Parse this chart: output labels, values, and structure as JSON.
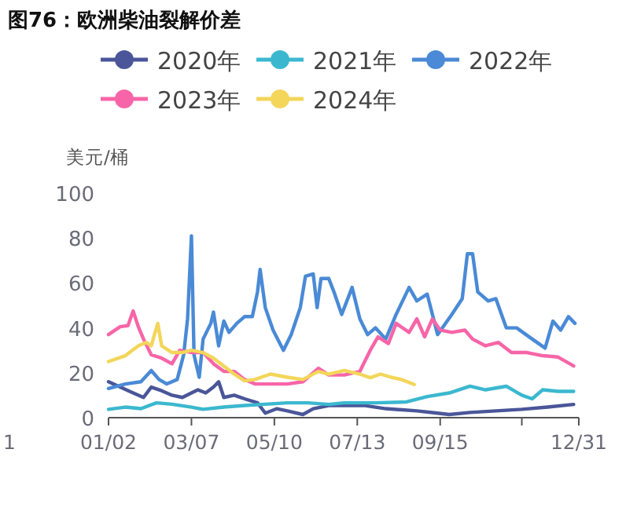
{
  "chart_data": {
    "type": "line",
    "title": "图76：欧洲柴油裂解价差",
    "ylabel": "美元/桶",
    "xlim": [
      "--01-02",
      "--12-31"
    ],
    "xticks": [
      {
        "value": "--01-02",
        "label": "01/02"
      },
      {
        "value": "--03-07",
        "label": "03/07"
      },
      {
        "value": "--05-10",
        "label": "05/10"
      },
      {
        "value": "--07-13",
        "label": "07/13"
      },
      {
        "value": "--09-15",
        "label": "09/15"
      },
      {
        "value": "--11-17",
        "label": null
      },
      {
        "value": "--12-31",
        "label": "12/31"
      }
    ],
    "ylim": [
      0,
      100
    ],
    "yticks": [
      0,
      20,
      40,
      60,
      80,
      100
    ],
    "grid": false,
    "legend": "top",
    "annotations": [
      "1"
    ],
    "series": [
      {
        "name": "2020年",
        "color": "#4a5699",
        "x": [
          "--01-02",
          "--01-11",
          "--01-21",
          "--01-29",
          "--02-04",
          "--02-12",
          "--02-20",
          "--02-28",
          "--03-07",
          "--03-12",
          "--03-18",
          "--03-24",
          "--03-28",
          "--04-01",
          "--04-09",
          "--04-17",
          "--04-27",
          "--05-03",
          "--05-12",
          "--05-20",
          "--06-01",
          "--06-09",
          "--06-21",
          "--07-03",
          "--07-19",
          "--08-04",
          "--08-28",
          "--09-13",
          "--09-22",
          "--10-08",
          "--10-28",
          "--11-17",
          "--12-07",
          "--12-27"
        ],
        "values": [
          16,
          13.6,
          11,
          9,
          13.6,
          12,
          10,
          9,
          11,
          12.4,
          11,
          13.6,
          16,
          9,
          10,
          8.4,
          6.6,
          2,
          4,
          3,
          1.4,
          4,
          5.4,
          5.4,
          5.4,
          4,
          3,
          2,
          1.4,
          2.3,
          3,
          3.7,
          4.7,
          5.9
        ]
      },
      {
        "name": "2021年",
        "color": "#3bb8cf",
        "x": [
          "--01-02",
          "--01-15",
          "--01-27",
          "--02-08",
          "--02-20",
          "--03-07",
          "--03-16",
          "--04-01",
          "--04-17",
          "--05-03",
          "--05-20",
          "--06-05",
          "--06-21",
          "--07-03",
          "--07-27",
          "--08-20",
          "--09-05",
          "--09-22",
          "--10-08",
          "--10-20",
          "--11-05",
          "--11-17",
          "--11-25",
          "--12-03",
          "--12-15",
          "--12-27"
        ],
        "values": [
          3.7,
          4.7,
          4,
          6.6,
          6,
          4.7,
          3.7,
          4.7,
          5.4,
          6,
          6.6,
          6.6,
          5.9,
          6.6,
          6.6,
          7,
          9.4,
          11,
          14,
          12.4,
          14,
          10,
          8.4,
          12.4,
          11.7,
          11.7
        ]
      },
      {
        "name": "2022年",
        "color": "#4a8ad6",
        "x": [
          "--01-02",
          "--01-15",
          "--01-27",
          "--02-04",
          "--02-10",
          "--02-16",
          "--02-24",
          "--03-01",
          "--03-04",
          "--03-07",
          "--03-09",
          "--03-13",
          "--03-16",
          "--03-22",
          "--03-24",
          "--03-28",
          "--04-01",
          "--04-05",
          "--04-11",
          "--04-17",
          "--04-23",
          "--04-27",
          "--04-29",
          "--05-03",
          "--05-09",
          "--05-17",
          "--05-23",
          "--05-30",
          "--06-03",
          "--06-09",
          "--06-12",
          "--06-15",
          "--06-21",
          "--06-25",
          "--07-01",
          "--07-09",
          "--07-15",
          "--07-21",
          "--07-27",
          "--08-04",
          "--08-12",
          "--08-22",
          "--08-28",
          "--09-05",
          "--09-13",
          "--09-24",
          "--10-02",
          "--10-06",
          "--10-10",
          "--10-14",
          "--10-22",
          "--10-28",
          "--11-05",
          "--11-13",
          "--11-25",
          "--12-05",
          "--12-11",
          "--12-17",
          "--12-23",
          "--12-28"
        ],
        "values": [
          13,
          15,
          16,
          21,
          17,
          15,
          17,
          28,
          44,
          81,
          28,
          18,
          35,
          42,
          47,
          32,
          43,
          38,
          42,
          45,
          45,
          56,
          66,
          49,
          39,
          30,
          37,
          49,
          63,
          64,
          49,
          62,
          62,
          56,
          46,
          58,
          44,
          37,
          40,
          35,
          46,
          58,
          52,
          55,
          37,
          46,
          53,
          73,
          73,
          56,
          52,
          53,
          40,
          40,
          35,
          31,
          43,
          39,
          45,
          42
        ]
      },
      {
        "name": "2023年",
        "color": "#f765a8",
        "x": [
          "--01-02",
          "--01-11",
          "--01-17",
          "--01-21",
          "--01-25",
          "--01-29",
          "--02-04",
          "--02-12",
          "--02-20",
          "--02-26",
          "--03-07",
          "--03-16",
          "--03-24",
          "--04-01",
          "--04-09",
          "--04-17",
          "--04-25",
          "--05-07",
          "--05-20",
          "--06-01",
          "--06-13",
          "--06-21",
          "--07-03",
          "--07-15",
          "--07-23",
          "--07-29",
          "--08-06",
          "--08-12",
          "--08-22",
          "--08-28",
          "--09-03",
          "--09-09",
          "--09-15",
          "--09-24",
          "--10-04",
          "--10-10",
          "--10-20",
          "--10-30",
          "--11-09",
          "--11-21",
          "--12-03",
          "--12-15",
          "--12-27"
        ],
        "values": [
          37,
          40.5,
          41,
          47.5,
          40.5,
          35,
          28,
          26.5,
          24,
          30,
          29,
          29,
          24,
          20.6,
          20.6,
          17,
          15,
          15,
          15,
          16,
          22,
          19,
          19,
          20.6,
          30,
          36,
          33,
          42,
          38,
          44,
          36,
          44,
          39,
          38,
          39,
          35,
          32,
          33.5,
          29,
          29,
          27.6,
          27,
          23
        ]
      },
      {
        "name": "2024年",
        "color": "#f3d65a",
        "x": [
          "--01-02",
          "--01-15",
          "--01-25",
          "--01-31",
          "--02-04",
          "--02-09",
          "--02-12",
          "--02-20",
          "--02-28",
          "--03-07",
          "--03-16",
          "--03-24",
          "--04-01",
          "--04-09",
          "--04-17",
          "--04-25",
          "--05-07",
          "--05-20",
          "--06-01",
          "--06-13",
          "--06-21",
          "--07-03",
          "--07-15",
          "--07-23",
          "--07-31",
          "--08-08",
          "--08-16",
          "--08-26"
        ],
        "values": [
          25,
          27.6,
          32,
          33.5,
          32,
          42,
          32,
          29,
          29,
          30,
          29,
          26.5,
          23,
          19.4,
          16.4,
          17,
          19.4,
          18,
          17,
          20.6,
          19.4,
          21,
          19.4,
          17.8,
          19.4,
          18,
          17,
          14.8
        ]
      }
    ]
  }
}
